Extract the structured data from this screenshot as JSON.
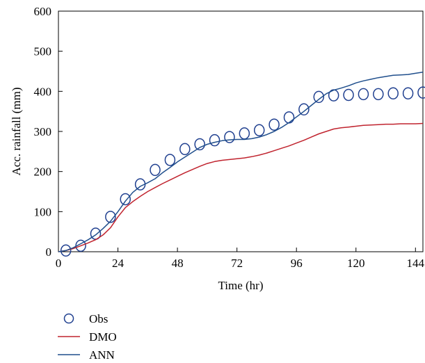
{
  "chart_data": {
    "type": "line",
    "title": "",
    "xlabel": "Time (hr)",
    "ylabel": "Acc. rainfall (mm)",
    "xlim": [
      0,
      147
    ],
    "ylim": [
      0,
      600
    ],
    "x_ticks": [
      0,
      24,
      48,
      72,
      96,
      120,
      144
    ],
    "y_ticks": [
      0,
      100,
      200,
      300,
      400,
      500,
      600
    ],
    "grid": false,
    "legend_position": "bottom-left, below plot",
    "series": [
      {
        "name": "Obs",
        "style": "markers",
        "marker": "open-circle",
        "color": "#1f3f8f",
        "x": [
          3,
          9,
          15,
          21,
          27,
          33,
          39,
          45,
          51,
          57,
          63,
          69,
          75,
          81,
          87,
          93,
          99,
          105,
          111,
          117,
          123,
          129,
          135,
          141,
          147
        ],
        "y": [
          3,
          15,
          45,
          87,
          131,
          168,
          204,
          229,
          256,
          268,
          278,
          286,
          295,
          303,
          317,
          335,
          355,
          386,
          390,
          391,
          393,
          393,
          395,
          395,
          397
        ]
      },
      {
        "name": "DMO",
        "style": "line",
        "color": "#c0232e",
        "x": [
          0,
          3,
          6,
          9,
          12,
          15,
          18,
          21,
          24,
          27,
          30,
          33,
          36,
          39,
          42,
          45,
          48,
          51,
          54,
          57,
          60,
          63,
          66,
          69,
          72,
          75,
          78,
          81,
          84,
          87,
          90,
          93,
          96,
          99,
          102,
          105,
          108,
          111,
          114,
          117,
          120,
          123,
          126,
          129,
          132,
          135,
          138,
          141,
          144,
          147
        ],
        "y": [
          0,
          3,
          8,
          15,
          22,
          30,
          42,
          60,
          87,
          110,
          125,
          138,
          150,
          160,
          170,
          179,
          188,
          197,
          205,
          213,
          220,
          225,
          228,
          230,
          232,
          234,
          237,
          241,
          246,
          252,
          258,
          264,
          271,
          278,
          286,
          294,
          300,
          306,
          309,
          311,
          313,
          315,
          316,
          317,
          318,
          318,
          319,
          319,
          319,
          320
        ]
      },
      {
        "name": "ANN",
        "style": "line",
        "color": "#1f4e8c",
        "x": [
          0,
          3,
          6,
          9,
          12,
          15,
          18,
          21,
          24,
          27,
          30,
          33,
          36,
          39,
          42,
          45,
          48,
          51,
          54,
          57,
          60,
          63,
          66,
          69,
          72,
          75,
          78,
          81,
          84,
          87,
          90,
          93,
          96,
          99,
          102,
          105,
          108,
          111,
          114,
          117,
          120,
          123,
          126,
          129,
          132,
          135,
          138,
          141,
          144,
          147
        ],
        "y": [
          0,
          3,
          10,
          20,
          30,
          42,
          58,
          76,
          100,
          126,
          148,
          163,
          172,
          182,
          197,
          210,
          224,
          236,
          248,
          260,
          268,
          273,
          277,
          279,
          280,
          280,
          282,
          286,
          292,
          300,
          310,
          322,
          336,
          350,
          365,
          380,
          394,
          403,
          408,
          414,
          421,
          426,
          430,
          434,
          437,
          440,
          441,
          442,
          445,
          448
        ]
      }
    ]
  }
}
